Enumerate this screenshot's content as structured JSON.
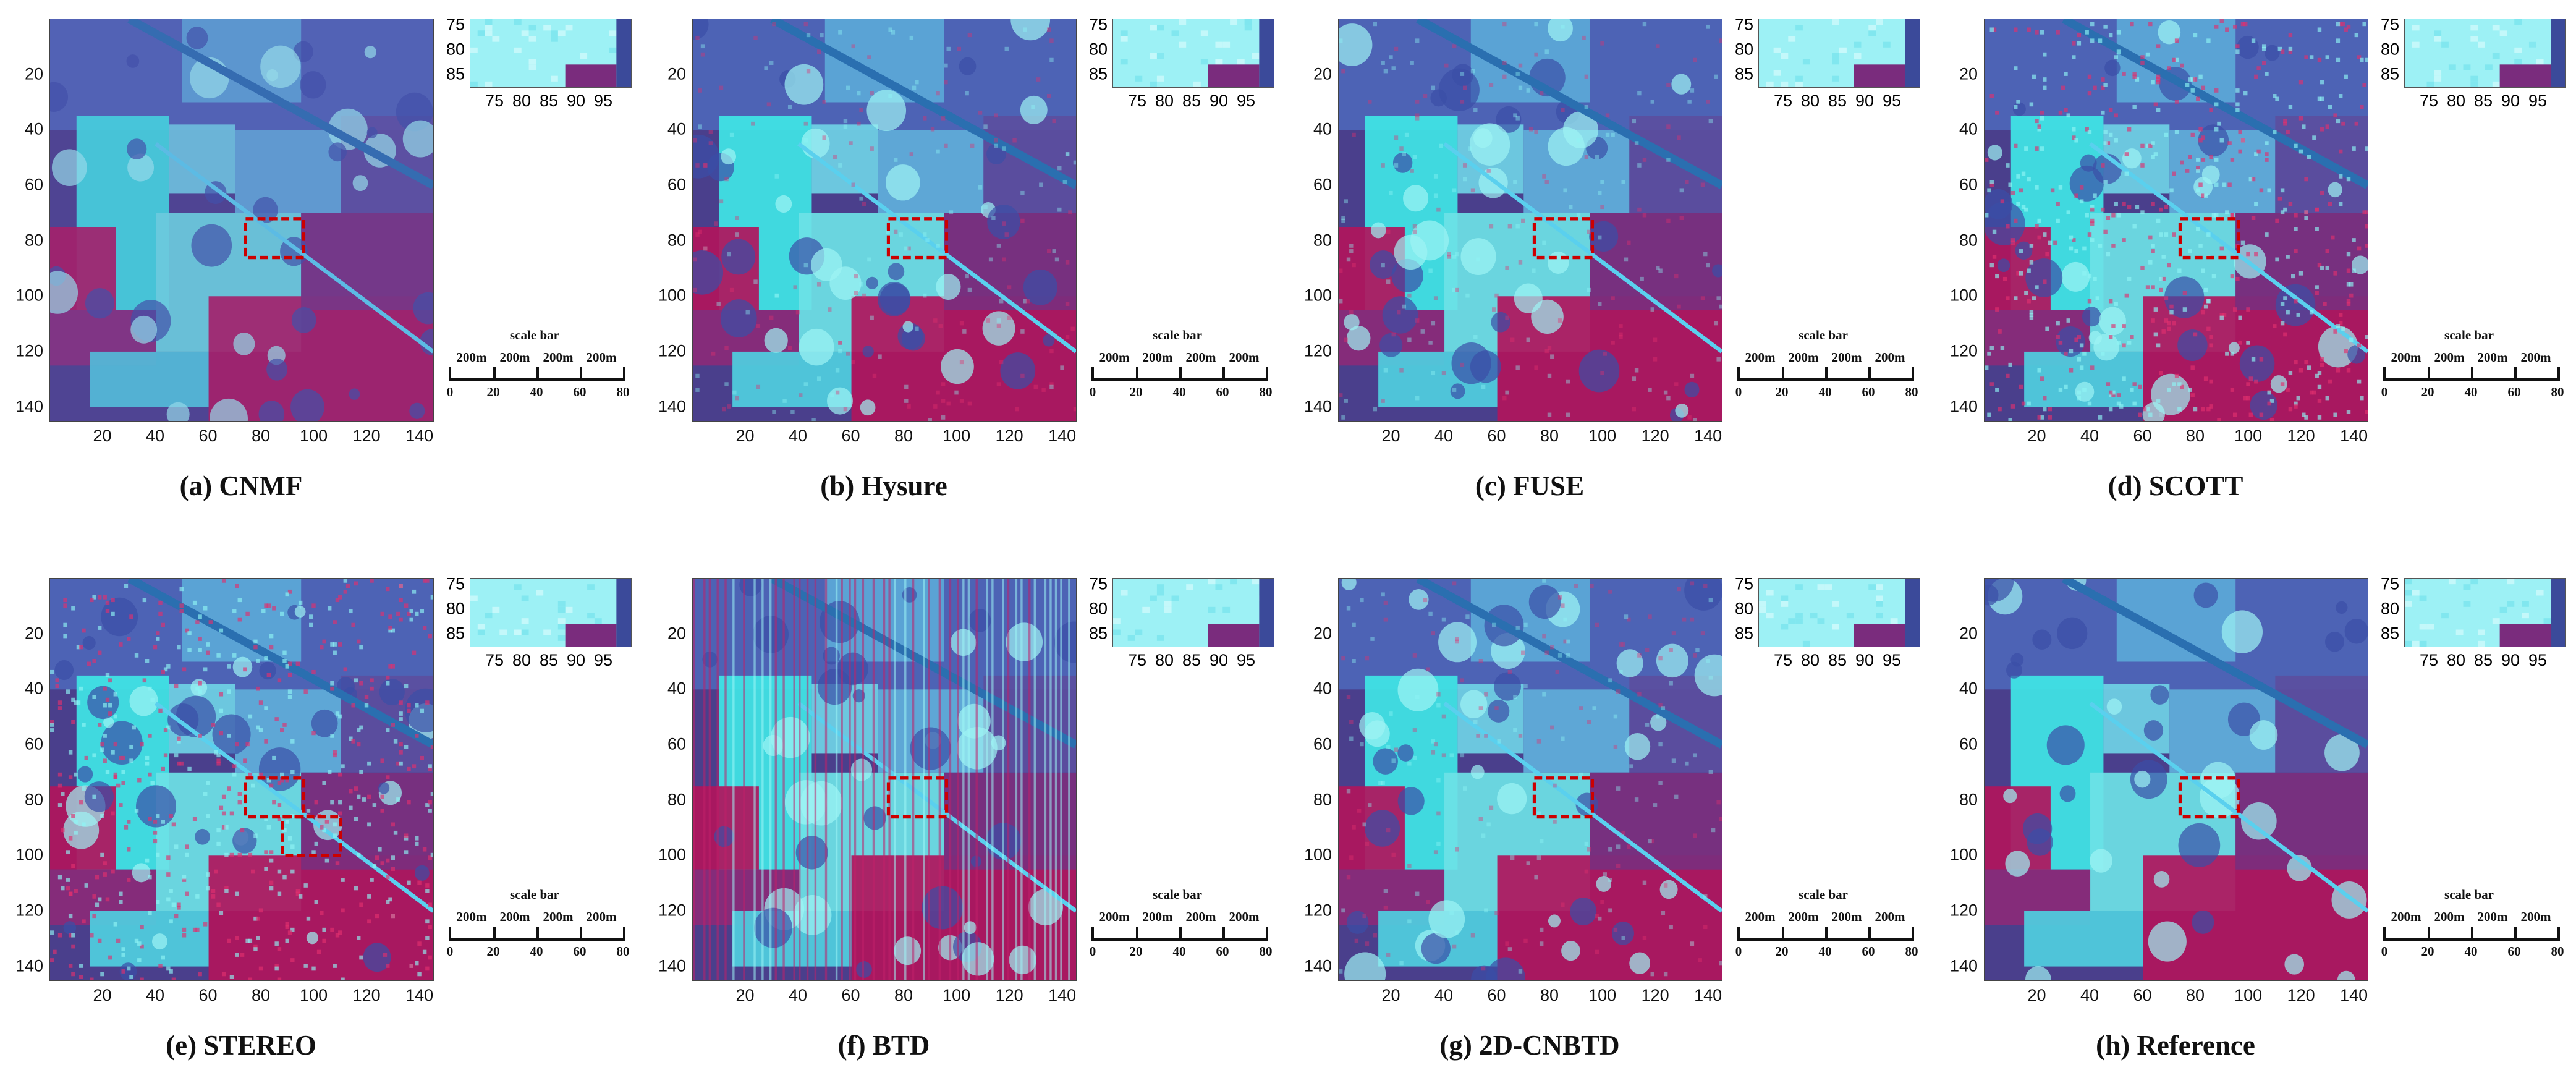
{
  "figure": {
    "panels": [
      {
        "id": "a",
        "caption": "(a) CNMF",
        "style": "smooth"
      },
      {
        "id": "b",
        "caption": "(b) Hysure",
        "style": "sharp"
      },
      {
        "id": "c",
        "caption": "(c) FUSE",
        "style": "sharp"
      },
      {
        "id": "d",
        "caption": "(d) SCOTT",
        "style": "noisy"
      },
      {
        "id": "e",
        "caption": "(e) STEREO",
        "style": "noisy"
      },
      {
        "id": "f",
        "caption": "(f) BTD",
        "style": "striped"
      },
      {
        "id": "g",
        "caption": "(g) 2D-CNBTD",
        "style": "sharp"
      },
      {
        "id": "h",
        "caption": "(h) Reference",
        "style": "reference"
      }
    ],
    "axis": {
      "y_ticks": [
        "20",
        "40",
        "60",
        "80",
        "100",
        "120",
        "140"
      ],
      "x_ticks": [
        "20",
        "40",
        "60",
        "80",
        "100",
        "120",
        "140"
      ]
    },
    "zoom_axis": {
      "y_ticks": [
        "75",
        "80",
        "85"
      ],
      "x_ticks": [
        "75",
        "80",
        "85",
        "90",
        "95"
      ]
    },
    "scale_bar": {
      "title": "scale bar",
      "segments": [
        "200m",
        "200m",
        "200m",
        "200m"
      ],
      "numbers": [
        "0",
        "20",
        "40",
        "60",
        "80"
      ]
    },
    "colors": {
      "cyan": "#3fe6e6",
      "magenta": "#b0155c",
      "purple": "#4b3a86",
      "highlight_box": "#cc0000"
    }
  }
}
